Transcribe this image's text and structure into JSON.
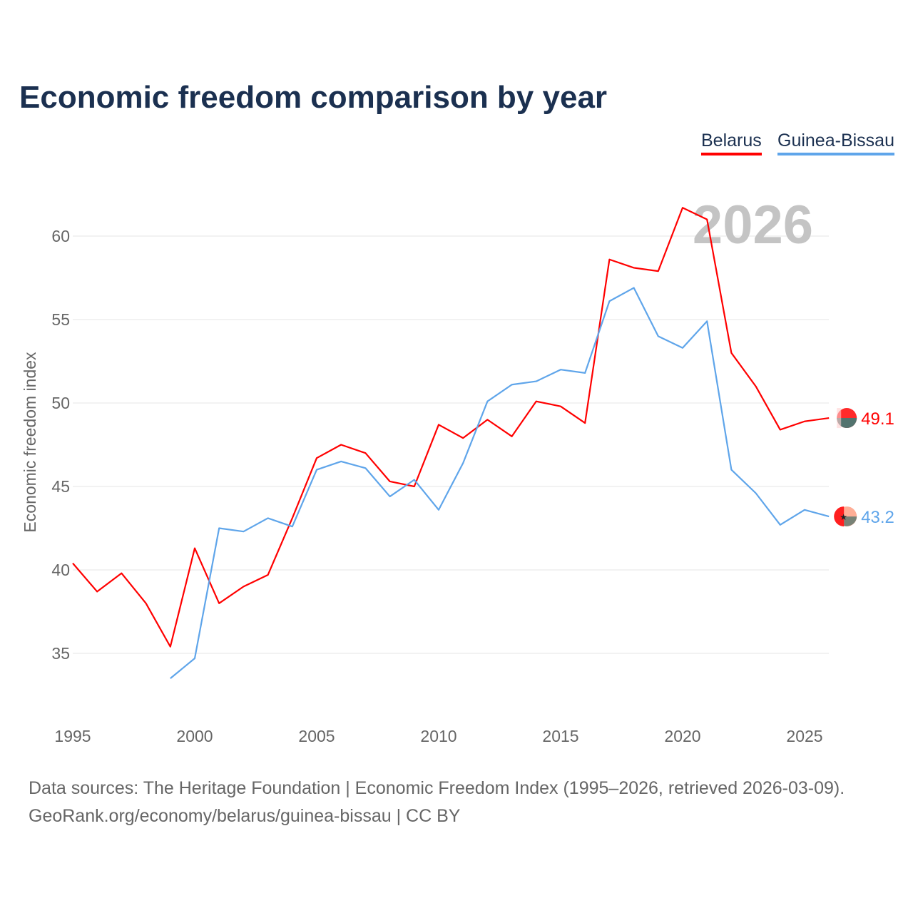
{
  "chart_data": {
    "type": "line",
    "title": "Economic freedom comparison by year",
    "xlabel": "",
    "ylabel": "Economic freedom index",
    "xlim": [
      1995,
      2026
    ],
    "ylim": [
      32,
      63
    ],
    "x_ticks": [
      "1995",
      "2000",
      "2005",
      "2010",
      "2015",
      "2020",
      "2025"
    ],
    "y_ticks": [
      "35",
      "40",
      "45",
      "50",
      "55",
      "60"
    ],
    "grid": true,
    "legend_position": "top-right",
    "watermark_year": "2026",
    "series": [
      {
        "name": "Belarus",
        "color": "#ff0000",
        "end_label": "49.1",
        "x": [
          1995,
          1996,
          1997,
          1998,
          1999,
          2000,
          2001,
          2002,
          2003,
          2004,
          2005,
          2006,
          2007,
          2008,
          2009,
          2010,
          2011,
          2012,
          2013,
          2014,
          2015,
          2016,
          2017,
          2018,
          2019,
          2020,
          2021,
          2022,
          2023,
          2024,
          2025,
          2026
        ],
        "values": [
          40.4,
          38.7,
          39.8,
          38.0,
          35.4,
          41.3,
          38.0,
          39.0,
          39.7,
          43.1,
          46.7,
          47.5,
          47.0,
          45.3,
          45.0,
          48.7,
          47.9,
          49.0,
          48.0,
          50.1,
          49.8,
          48.8,
          58.6,
          58.1,
          57.9,
          61.7,
          61.0,
          53.0,
          51.0,
          48.4,
          48.9,
          49.1
        ]
      },
      {
        "name": "Guinea-Bissau",
        "color": "#5fa5ea",
        "end_label": "43.2",
        "x": [
          1999,
          2000,
          2001,
          2002,
          2003,
          2004,
          2005,
          2006,
          2007,
          2008,
          2009,
          2010,
          2011,
          2012,
          2013,
          2014,
          2015,
          2016,
          2017,
          2018,
          2019,
          2020,
          2021,
          2022,
          2023,
          2024,
          2025,
          2026
        ],
        "values": [
          33.5,
          34.7,
          42.5,
          42.3,
          43.1,
          42.6,
          46.0,
          46.5,
          46.1,
          44.4,
          45.4,
          43.6,
          46.4,
          50.1,
          51.1,
          51.3,
          52.0,
          51.8,
          56.1,
          56.9,
          54.0,
          53.3,
          54.9,
          46.0,
          44.6,
          42.7,
          43.6,
          43.2
        ]
      }
    ]
  },
  "footer": {
    "line1": "Data sources: The Heritage Foundation | Economic Freedom Index (1995–2026, retrieved 2026-03-09).",
    "line2": "GeoRank.org/economy/belarus/guinea-bissau | CC BY"
  }
}
